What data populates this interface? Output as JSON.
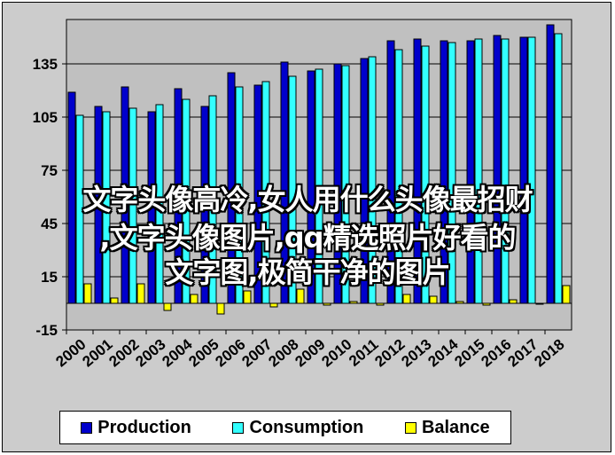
{
  "chart_data": {
    "type": "bar",
    "categories": [
      "2000",
      "2001",
      "2002",
      "2003",
      "2004",
      "2005",
      "2006",
      "2007",
      "2008",
      "2009",
      "2010",
      "2011",
      "2012",
      "2013",
      "2014",
      "2015",
      "2016",
      "2017",
      "2018"
    ],
    "series": [
      {
        "name": "Production",
        "color": "#0000cc",
        "values": [
          119,
          111,
          122,
          108,
          121,
          111,
          130,
          123,
          136,
          131,
          135,
          138,
          148,
          149,
          148,
          148,
          151,
          150,
          157
        ]
      },
      {
        "name": "Consumption",
        "color": "#33ffff",
        "values": [
          106,
          108,
          110,
          112,
          115,
          117,
          122,
          125,
          128,
          132,
          134,
          139,
          143,
          145,
          147,
          149,
          149,
          150,
          152
        ]
      },
      {
        "name": "Balance",
        "color": "#ffff00",
        "values": [
          11,
          3,
          11,
          -4,
          5,
          -6,
          7,
          -2,
          8,
          -1,
          1,
          -1,
          5,
          4,
          1,
          -1,
          2,
          0,
          10
        ]
      }
    ],
    "ylim": [
      -15,
      160
    ],
    "yticks": [
      -15,
      15,
      45,
      75,
      105,
      135
    ],
    "grid": true,
    "legend_position": "bottom"
  },
  "overlay": {
    "line1": "文字头像高冷,女人用什么头像最招财",
    "line2": ",文字头像图片,qq精选照片好看的",
    "line3": "文字图,极简干净的图片"
  }
}
